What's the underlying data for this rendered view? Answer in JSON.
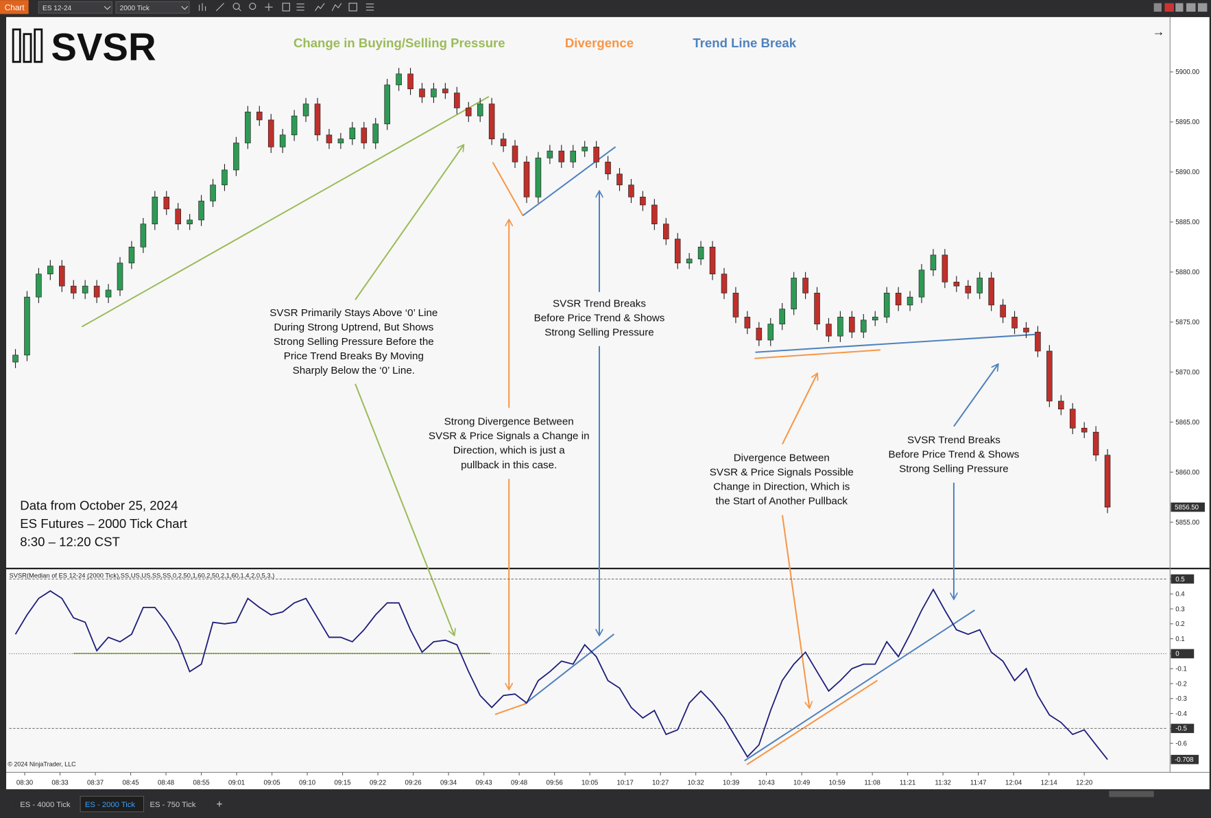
{
  "toolbar": {
    "label": "Chart",
    "instrument": "ES 12-24",
    "interval": "2000 Tick"
  },
  "logo": "SVSR",
  "legend": [
    {
      "text": "Change in Buying/Selling  Pressure",
      "color": "#9bbb59"
    },
    {
      "text": "Divergence",
      "color": "#f79646"
    },
    {
      "text": "Trend Line Break",
      "color": "#4f81bd"
    }
  ],
  "notes": [
    [
      "SVSR Primarily Stays Above ‘0’ Line",
      "During Strong Uptrend, But Shows",
      "Strong Selling Pressure Before the",
      "Price Trend Breaks By Moving",
      "Sharply Below the ‘0’ Line."
    ],
    [
      "SVSR Trend Breaks",
      "Before Price Trend & Shows",
      "Strong Selling Pressure"
    ],
    [
      "Strong Divergence Between",
      "SVSR & Price Signals a Change in",
      "Direction, which is just a",
      "pullback in this case."
    ],
    [
      "Divergence Between",
      "SVSR & Price Signals Possible",
      "Change in Direction, Which is",
      "the Start of Another Pullback"
    ],
    [
      "SVSR Trend Breaks",
      "Before Price Trend & Shows",
      "Strong Selling Pressure"
    ]
  ],
  "info": [
    "Data from October 25, 2024",
    "ES Futures – 2000 Tick Chart",
    "8:30 – 12:20 CST"
  ],
  "indicator_label": "SVSR(Median of ES 12-24 (2000 Tick),SS,US,US,SS,SS,0,2,50,1,60,2,50,2,1,60,1,4,2,0,5,3,)",
  "copyright": "© 2024 NinjaTrader, LLC",
  "time_labels": [
    "08:30",
    "08:33",
    "08:37",
    "08:45",
    "08:48",
    "08:55",
    "09:01",
    "09:05",
    "09:10",
    "09:15",
    "09:22",
    "09:26",
    "09:34",
    "09:43",
    "09:48",
    "09:56",
    "10:05",
    "10:17",
    "10:27",
    "10:32",
    "10:39",
    "10:43",
    "10:49",
    "10:59",
    "11:08",
    "11:21",
    "11:32",
    "11:47",
    "12:04",
    "12:14",
    "12:20"
  ],
  "tabs": [
    "ES - 4000 Tick",
    "ES - 2000 Tick",
    "ES - 750 Tick"
  ],
  "active_tab": 1,
  "chart_data": [
    {
      "type": "candlestick",
      "up_color": "#2f9a55",
      "down_color": "#c0302b",
      "open": [
        5871.0,
        5871.7,
        5877.5,
        5879.8,
        5880.6,
        5878.6,
        5877.9,
        5878.6,
        5877.5,
        5878.2,
        5880.9,
        5882.5,
        5884.8,
        5887.5,
        5886.3,
        5884.8,
        5885.2,
        5887.1,
        5888.7,
        5890.2,
        5892.9,
        5896.0,
        5895.2,
        5892.5,
        5893.7,
        5895.6,
        5896.8,
        5893.7,
        5892.9,
        5893.3,
        5894.4,
        5892.9,
        5894.8,
        5898.7,
        5899.8,
        5898.3,
        5897.5,
        5898.3,
        5897.9,
        5896.4,
        5895.6,
        5896.8,
        5893.3,
        5892.6,
        5891.0,
        5887.5,
        5891.4,
        5892.1,
        5891.0,
        5892.1,
        5892.5,
        5891.0,
        5889.8,
        5888.7,
        5887.5,
        5886.7,
        5884.8,
        5883.3,
        5880.9,
        5881.3,
        5882.5,
        5879.8,
        5877.9,
        5875.5,
        5874.4,
        5873.2,
        5874.8,
        5876.3,
        5879.4,
        5877.9,
        5874.8,
        5873.6,
        5875.5,
        5874.0,
        5875.2,
        5875.5,
        5877.9,
        5876.7,
        5877.5,
        5880.2,
        5881.7,
        5879.0,
        5878.6,
        5877.9,
        5879.4,
        5876.7,
        5875.5,
        5874.4,
        5874.0,
        5872.1,
        5867.1,
        5866.3,
        5864.4,
        5864.0,
        5861.7
      ],
      "high": [
        5872.3,
        5878.1,
        5880.4,
        5881.2,
        5881.2,
        5879.2,
        5879.2,
        5879.2,
        5878.8,
        5881.5,
        5883.1,
        5885.4,
        5888.1,
        5888.1,
        5886.9,
        5885.8,
        5887.7,
        5889.3,
        5890.8,
        5893.5,
        5896.6,
        5896.6,
        5895.8,
        5894.3,
        5896.2,
        5897.4,
        5897.4,
        5894.3,
        5893.9,
        5895.0,
        5895.0,
        5895.4,
        5899.3,
        5900.4,
        5900.4,
        5898.9,
        5898.9,
        5898.9,
        5898.5,
        5897.0,
        5897.4,
        5897.4,
        5893.9,
        5893.2,
        5891.6,
        5892.0,
        5892.7,
        5892.7,
        5892.7,
        5893.1,
        5893.1,
        5891.6,
        5890.4,
        5889.3,
        5888.1,
        5887.3,
        5885.4,
        5883.9,
        5881.9,
        5883.1,
        5883.1,
        5880.4,
        5878.5,
        5876.1,
        5875.0,
        5875.4,
        5876.9,
        5880.0,
        5880.0,
        5878.5,
        5875.4,
        5876.1,
        5876.1,
        5875.8,
        5876.1,
        5878.5,
        5878.5,
        5878.1,
        5880.8,
        5882.3,
        5882.3,
        5879.6,
        5879.2,
        5880.0,
        5880.0,
        5877.3,
        5876.1,
        5875.0,
        5874.6,
        5872.7,
        5867.7,
        5866.9,
        5865.0,
        5864.6,
        5862.3
      ],
      "low": [
        5870.4,
        5871.1,
        5876.9,
        5879.2,
        5878.0,
        5877.3,
        5877.3,
        5876.9,
        5876.9,
        5877.6,
        5880.3,
        5881.9,
        5884.2,
        5885.7,
        5884.2,
        5884.2,
        5884.6,
        5886.5,
        5888.1,
        5889.6,
        5892.3,
        5894.6,
        5891.9,
        5891.9,
        5893.1,
        5895.0,
        5893.1,
        5892.3,
        5892.3,
        5892.7,
        5892.3,
        5892.3,
        5894.2,
        5898.1,
        5897.7,
        5896.9,
        5896.9,
        5897.3,
        5895.8,
        5895.0,
        5895.0,
        5892.7,
        5892.0,
        5890.4,
        5886.9,
        5886.9,
        5890.8,
        5890.4,
        5890.4,
        5891.5,
        5890.4,
        5889.2,
        5888.1,
        5886.9,
        5886.1,
        5884.2,
        5882.7,
        5880.3,
        5880.3,
        5880.7,
        5879.2,
        5877.3,
        5874.9,
        5873.8,
        5872.6,
        5872.6,
        5874.2,
        5875.7,
        5877.3,
        5874.2,
        5873.0,
        5873.0,
        5873.4,
        5873.4,
        5874.6,
        5874.9,
        5876.1,
        5876.1,
        5876.9,
        5879.6,
        5878.4,
        5878.0,
        5877.3,
        5877.3,
        5876.1,
        5874.9,
        5873.8,
        5873.4,
        5871.5,
        5866.5,
        5865.7,
        5863.8,
        5863.4,
        5861.1,
        5855.9
      ],
      "close": [
        5871.7,
        5877.5,
        5879.8,
        5880.6,
        5878.6,
        5877.9,
        5878.6,
        5877.5,
        5878.2,
        5880.9,
        5882.5,
        5884.8,
        5887.5,
        5886.3,
        5884.8,
        5885.2,
        5887.1,
        5888.7,
        5890.2,
        5892.9,
        5896.0,
        5895.2,
        5892.5,
        5893.7,
        5895.6,
        5896.8,
        5893.7,
        5892.9,
        5893.3,
        5894.4,
        5892.9,
        5894.8,
        5898.7,
        5899.8,
        5898.3,
        5897.5,
        5898.3,
        5897.9,
        5896.4,
        5895.6,
        5896.8,
        5893.3,
        5892.6,
        5891.0,
        5887.5,
        5891.4,
        5892.1,
        5891.0,
        5892.1,
        5892.5,
        5891.0,
        5889.8,
        5888.7,
        5887.5,
        5886.7,
        5884.8,
        5883.3,
        5880.9,
        5881.3,
        5882.5,
        5879.8,
        5877.9,
        5875.5,
        5874.4,
        5873.2,
        5874.8,
        5876.3,
        5879.4,
        5877.9,
        5874.8,
        5873.6,
        5875.5,
        5874.0,
        5875.2,
        5875.5,
        5877.9,
        5876.7,
        5877.5,
        5880.2,
        5881.7,
        5879.0,
        5878.6,
        5877.9,
        5879.4,
        5876.7,
        5875.5,
        5874.4,
        5874.0,
        5872.1,
        5867.1,
        5866.3,
        5864.4,
        5864.0,
        5861.7,
        5856.5
      ],
      "last_price": {
        "value": 5856.5,
        "label": "5856.50"
      },
      "ylim": [
        5850.45,
        5905.48
      ],
      "yticks": [
        {
          "value": 5855,
          "label": "5855.00"
        },
        {
          "value": 5860,
          "label": "5860.00"
        },
        {
          "value": 5865,
          "label": "5865.00"
        },
        {
          "value": 5870,
          "label": "5870.00"
        },
        {
          "value": 5875,
          "label": "5875.00"
        },
        {
          "value": 5880,
          "label": "5880.00"
        },
        {
          "value": 5885,
          "label": "5885.00"
        },
        {
          "value": 5890,
          "label": "5890.00"
        },
        {
          "value": 5895,
          "label": "5895.00"
        },
        {
          "value": 5900,
          "label": "5900.00"
        }
      ]
    },
    {
      "type": "line",
      "color": "#1c1c7a",
      "values": [
        0.13,
        0.26,
        0.37,
        0.42,
        0.37,
        0.24,
        0.21,
        0.02,
        0.11,
        0.08,
        0.13,
        0.31,
        0.31,
        0.21,
        0.08,
        -0.12,
        -0.07,
        0.21,
        0.2,
        0.21,
        0.37,
        0.31,
        0.26,
        0.28,
        0.34,
        0.37,
        0.24,
        0.11,
        0.11,
        0.08,
        0.16,
        0.26,
        0.34,
        0.34,
        0.16,
        0.01,
        0.08,
        0.09,
        0.06,
        -0.12,
        -0.28,
        -0.36,
        -0.28,
        -0.27,
        -0.33,
        -0.18,
        -0.12,
        -0.05,
        -0.07,
        0.06,
        -0.02,
        -0.18,
        -0.23,
        -0.36,
        -0.43,
        -0.38,
        -0.54,
        -0.51,
        -0.33,
        -0.25,
        -0.33,
        -0.43,
        -0.56,
        -0.69,
        -0.61,
        -0.38,
        -0.18,
        -0.07,
        0.01,
        -0.12,
        -0.25,
        -0.18,
        -0.1,
        -0.07,
        -0.07,
        0.08,
        -0.02,
        0.13,
        0.29,
        0.43,
        0.29,
        0.16,
        0.13,
        0.16,
        0.01,
        -0.05,
        -0.18,
        -0.1,
        -0.28,
        -0.41,
        -0.46,
        -0.54,
        -0.51,
        -0.61,
        -0.708
      ],
      "ylim": [
        -0.794,
        0.56
      ],
      "yticks": [
        -0.6,
        -0.5,
        -0.4,
        -0.3,
        -0.2,
        -0.1,
        0,
        0.1,
        0.2,
        0.3,
        0.4,
        0.5
      ],
      "ref_lines": [
        0.5,
        0,
        -0.5
      ]
    }
  ]
}
